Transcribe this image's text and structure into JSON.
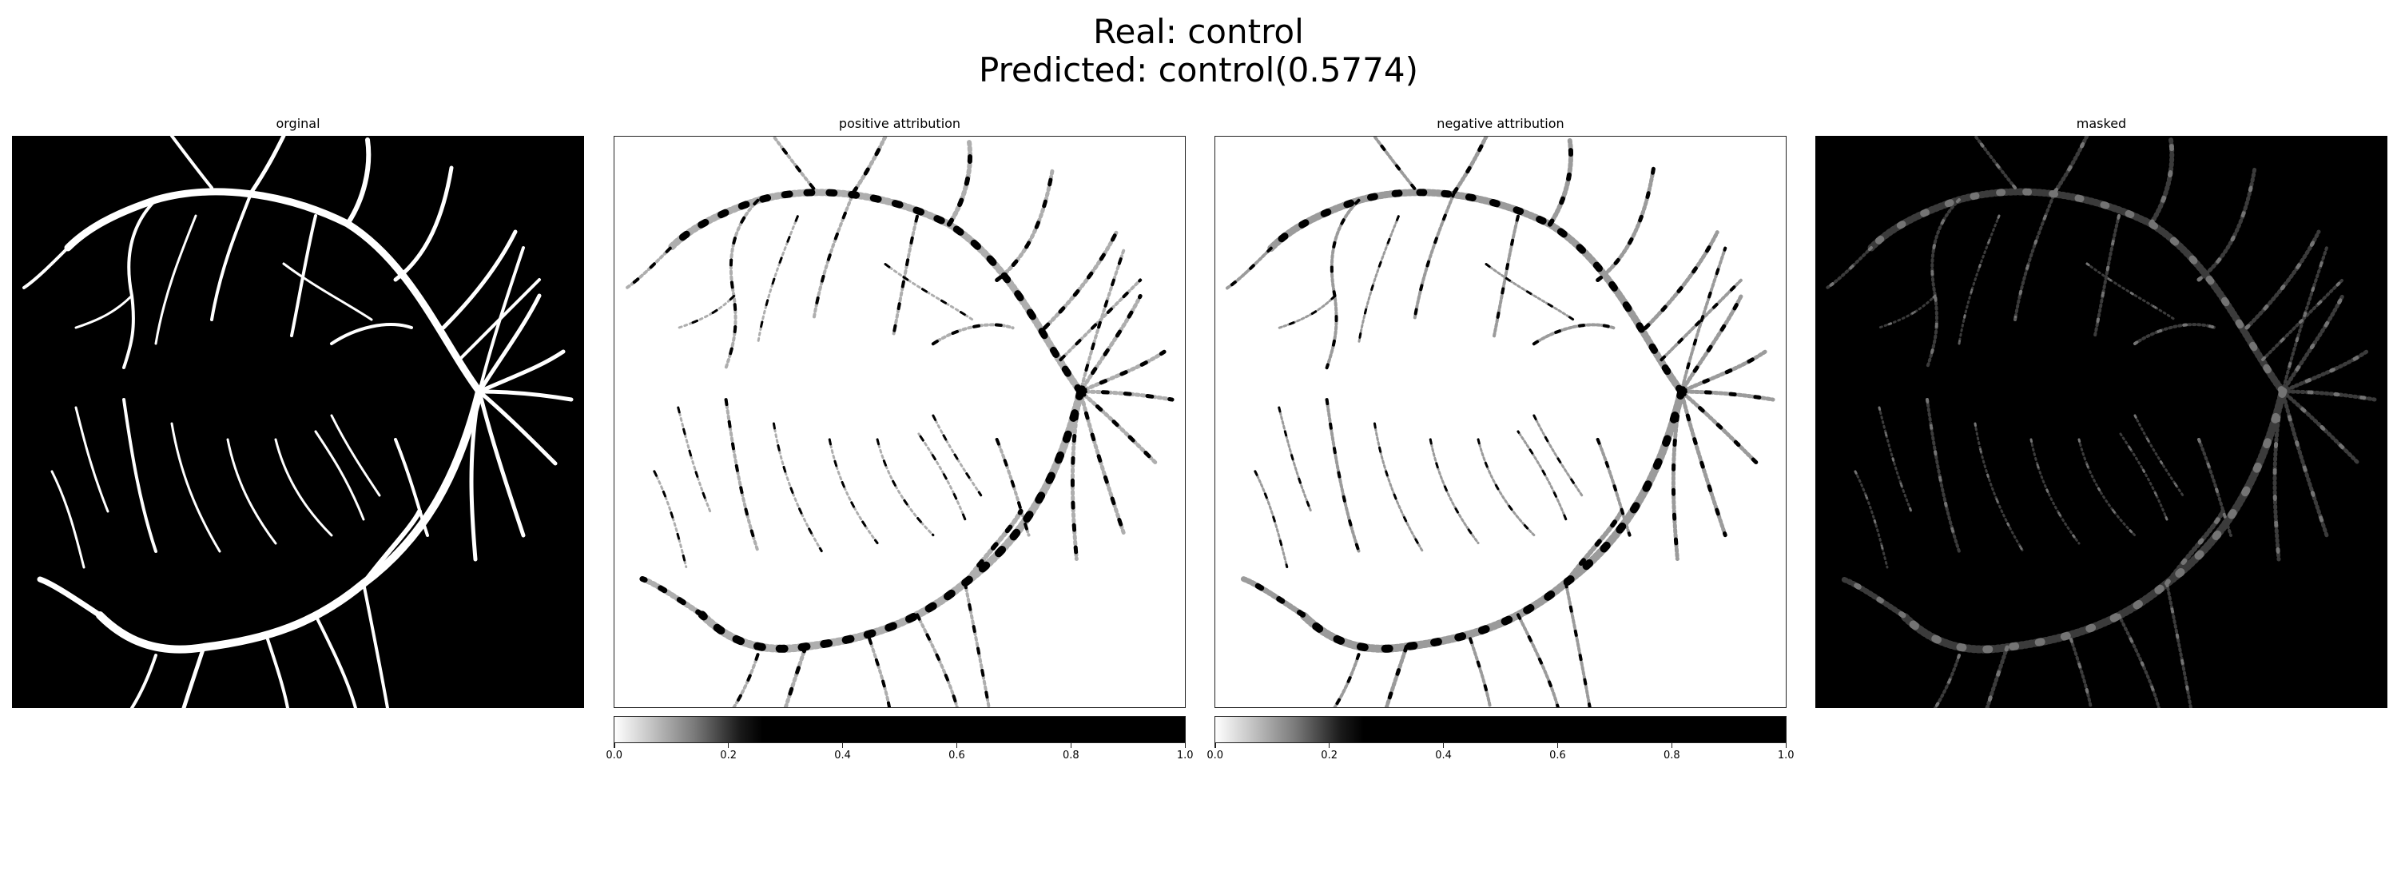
{
  "figure": {
    "title_line1": "Real: control",
    "title_line2": "Predicted: control(0.5774)"
  },
  "panels": [
    {
      "title": "orginal"
    },
    {
      "title": "positive attribution"
    },
    {
      "title": "negative attribution"
    },
    {
      "title": "masked"
    }
  ],
  "colorbar": {
    "ticks": [
      "0.0",
      "0.2",
      "0.4",
      "0.6",
      "0.8",
      "1.0"
    ],
    "colormap": "gray_r"
  }
}
